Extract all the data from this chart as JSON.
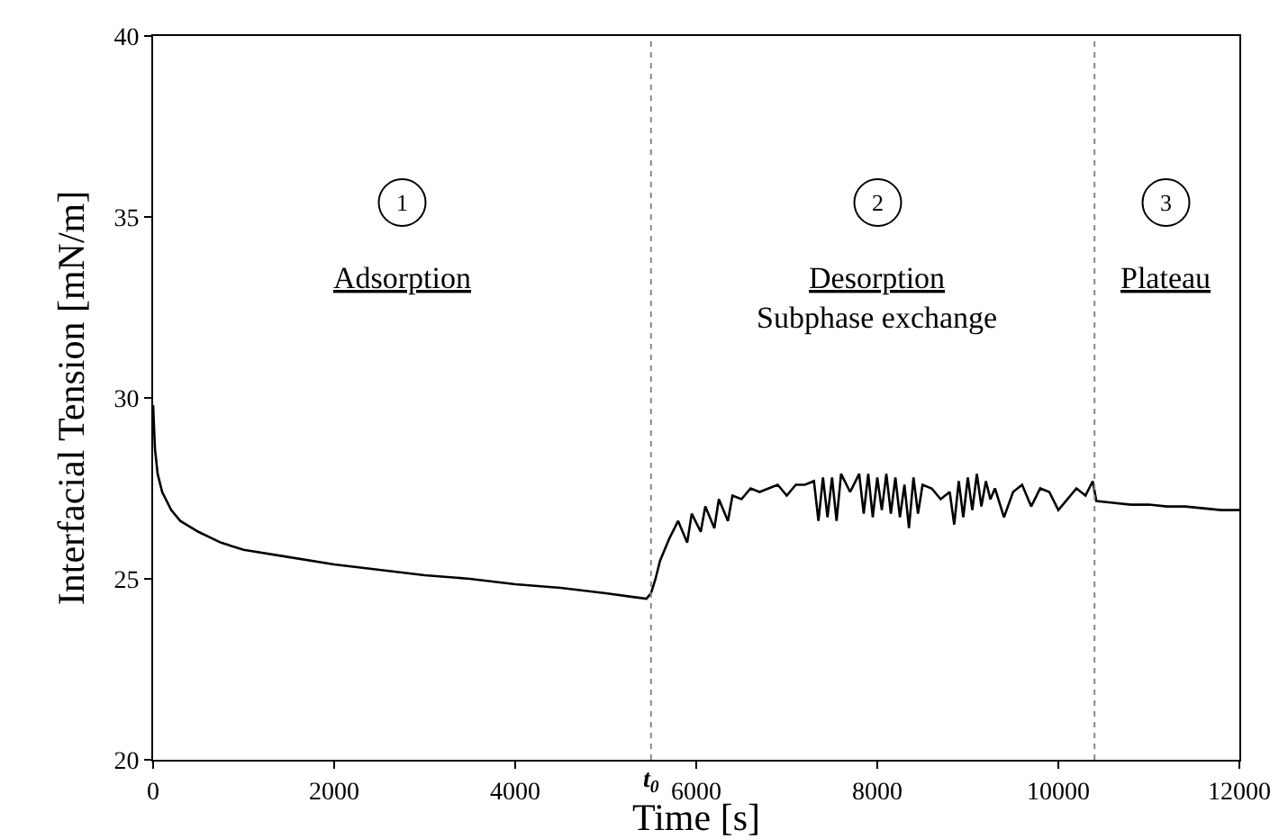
{
  "chart_data": {
    "type": "line",
    "xlabel": "Time [s]",
    "ylabel": "Interfacial Tension [mN/m]",
    "x": [
      0,
      20,
      50,
      100,
      200,
      300,
      500,
      750,
      1000,
      1500,
      2000,
      2500,
      3000,
      3500,
      4000,
      4500,
      5000,
      5300,
      5450,
      5500,
      5550,
      5600,
      5700,
      5800,
      5900,
      5950,
      6050,
      6100,
      6200,
      6250,
      6350,
      6400,
      6500,
      6600,
      6700,
      6800,
      6900,
      7000,
      7100,
      7200,
      7300,
      7350,
      7400,
      7450,
      7500,
      7550,
      7600,
      7700,
      7800,
      7850,
      7900,
      7950,
      8000,
      8050,
      8100,
      8150,
      8200,
      8250,
      8300,
      8350,
      8400,
      8450,
      8500,
      8600,
      8700,
      8800,
      8850,
      8900,
      8950,
      9000,
      9050,
      9100,
      9150,
      9200,
      9250,
      9300,
      9400,
      9500,
      9600,
      9700,
      9800,
      9900,
      10000,
      10100,
      10200,
      10300,
      10380,
      10420,
      10600,
      10800,
      11000,
      11200,
      11400,
      11600,
      11800,
      12000
    ],
    "series": [
      {
        "color": "#000000",
        "values": [
          29.8,
          28.6,
          27.9,
          27.4,
          26.9,
          26.6,
          26.3,
          26.0,
          25.8,
          25.6,
          25.4,
          25.25,
          25.1,
          25.0,
          24.85,
          24.75,
          24.6,
          24.5,
          24.45,
          24.6,
          25.0,
          25.5,
          26.1,
          26.6,
          26.0,
          26.8,
          26.3,
          27.0,
          26.4,
          27.2,
          26.6,
          27.3,
          27.2,
          27.5,
          27.4,
          27.5,
          27.6,
          27.3,
          27.6,
          27.6,
          27.7,
          26.6,
          27.8,
          26.7,
          27.8,
          26.6,
          27.9,
          27.4,
          27.9,
          26.8,
          27.9,
          26.7,
          27.8,
          26.9,
          27.9,
          26.8,
          27.8,
          26.7,
          27.6,
          26.4,
          27.8,
          26.8,
          27.6,
          27.5,
          27.2,
          27.4,
          26.5,
          27.7,
          26.7,
          27.8,
          26.9,
          27.9,
          27.0,
          27.7,
          27.2,
          27.5,
          26.7,
          27.4,
          27.6,
          27.0,
          27.5,
          27.4,
          26.9,
          27.2,
          27.5,
          27.3,
          27.7,
          27.15,
          27.1,
          27.05,
          27.05,
          27.0,
          27.0,
          26.95,
          26.9,
          26.9
        ]
      }
    ],
    "xlim": [
      0,
      12000
    ],
    "ylim": [
      20,
      40
    ],
    "xticks": [
      0,
      2000,
      4000,
      6000,
      8000,
      10000,
      12000
    ],
    "yticks": [
      20,
      25,
      30,
      35,
      40
    ],
    "ref_lines": [
      {
        "axis": "x",
        "value": 5500,
        "label": "t$_{0}$",
        "line_style": "dotted",
        "color": "#888888"
      },
      {
        "axis": "x",
        "value": 10400,
        "line_style": "dotted",
        "color": "#888888"
      }
    ],
    "annotations": [
      "1",
      "Adsorption",
      "2",
      "Desorption",
      "Subphase exchange",
      "3",
      "Plateau"
    ],
    "grid": false,
    "marker": "none",
    "line_style": "solid"
  }
}
